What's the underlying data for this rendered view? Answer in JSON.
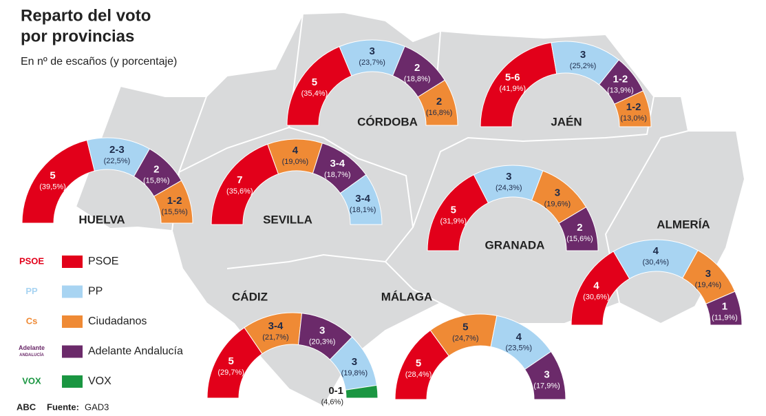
{
  "title": [
    "Reparto del voto",
    "por provincias"
  ],
  "subtitle": "En nº de escaños (y porcentaje)",
  "legend": [
    {
      "logo": [
        "PSOE"
      ],
      "name": "PSOE",
      "color": "#e2001a"
    },
    {
      "logo": [
        "PP"
      ],
      "name": "PP",
      "color": "#a8d4f2"
    },
    {
      "logo": [
        "Cs"
      ],
      "name": "Ciudadanos",
      "color": "#ef8a35"
    },
    {
      "logo": [
        "Adelante",
        "ANDALUCÍA"
      ],
      "name": "Adelante Andalucía",
      "color": "#6b2a6a"
    },
    {
      "logo": [
        "VOX"
      ],
      "name": "VOX",
      "color": "#1a9641"
    }
  ],
  "footer": {
    "brand": "ABC",
    "source_label": "Fuente:",
    "source": "GAD3"
  },
  "chart_data": [
    {
      "type": "half-donut",
      "title": "CÓRDOBA",
      "seats": [
        "5",
        "3",
        "2",
        "2"
      ],
      "values": [
        35.4,
        23.7,
        18.8,
        16.8
      ],
      "value_labels": [
        "(35,4%)",
        "(23,7%)",
        "(18,8%)",
        "(16,8%)"
      ],
      "colors": [
        "#e2001a",
        "#a8d4f2",
        "#6b2a6a",
        "#ef8a35"
      ]
    },
    {
      "type": "half-donut",
      "title": "JAÉN",
      "seats": [
        "5-6",
        "3",
        "1-2",
        "1-2"
      ],
      "values": [
        41.9,
        25.2,
        13.9,
        13.0
      ],
      "value_labels": [
        "(41,9%)",
        "(25,2%)",
        "(13,9%)",
        "(13,0%)"
      ],
      "colors": [
        "#e2001a",
        "#a8d4f2",
        "#6b2a6a",
        "#ef8a35"
      ]
    },
    {
      "type": "half-donut",
      "title": "HUELVA",
      "seats": [
        "5",
        "2-3",
        "2",
        "1-2"
      ],
      "values": [
        39.5,
        22.5,
        15.8,
        15.5
      ],
      "value_labels": [
        "(39,5%)",
        "(22,5%)",
        "(15,8%)",
        "(15,5%)"
      ],
      "colors": [
        "#e2001a",
        "#a8d4f2",
        "#6b2a6a",
        "#ef8a35"
      ]
    },
    {
      "type": "half-donut",
      "title": "SEVILLA",
      "seats": [
        "7",
        "4",
        "3-4",
        "3-4"
      ],
      "values": [
        35.6,
        19.0,
        18.7,
        18.1
      ],
      "value_labels": [
        "(35,6%)",
        "(19,0%)",
        "(18,7%)",
        "(18,1%)"
      ],
      "colors": [
        "#e2001a",
        "#ef8a35",
        "#6b2a6a",
        "#a8d4f2"
      ]
    },
    {
      "type": "half-donut",
      "title": "GRANADA",
      "seats": [
        "5",
        "3",
        "3",
        "2"
      ],
      "values": [
        31.9,
        24.3,
        19.6,
        15.6
      ],
      "value_labels": [
        "(31,9%)",
        "(24,3%)",
        "(19,6%)",
        "(15,6%)"
      ],
      "colors": [
        "#e2001a",
        "#a8d4f2",
        "#ef8a35",
        "#6b2a6a"
      ]
    },
    {
      "type": "half-donut",
      "title": "ALMERÍA",
      "seats": [
        "4",
        "4",
        "3",
        "1"
      ],
      "values": [
        30.6,
        30.4,
        19.4,
        11.9
      ],
      "value_labels": [
        "(30,6%)",
        "(30,4%)",
        "(19,4%)",
        "(11,9%)"
      ],
      "colors": [
        "#e2001a",
        "#a8d4f2",
        "#ef8a35",
        "#6b2a6a"
      ]
    },
    {
      "type": "half-donut",
      "title": "CÁDIZ",
      "seats": [
        "5",
        "3-4",
        "3",
        "3",
        "0-1"
      ],
      "values": [
        29.7,
        21.7,
        20.3,
        19.8,
        4.6
      ],
      "value_labels": [
        "(29,7%)",
        "(21,7%)",
        "(20,3%)",
        "(19,8%)",
        "(4,6%)"
      ],
      "colors": [
        "#e2001a",
        "#ef8a35",
        "#6b2a6a",
        "#a8d4f2",
        "#1a9641"
      ]
    },
    {
      "type": "half-donut",
      "title": "MÁLAGA",
      "seats": [
        "5",
        "5",
        "4",
        "3"
      ],
      "values": [
        28.4,
        24.7,
        23.5,
        17.9
      ],
      "value_labels": [
        "(28,4%)",
        "(24,7%)",
        "(23,5%)",
        "(17,9%)"
      ],
      "colors": [
        "#e2001a",
        "#ef8a35",
        "#a8d4f2",
        "#6b2a6a"
      ]
    }
  ]
}
